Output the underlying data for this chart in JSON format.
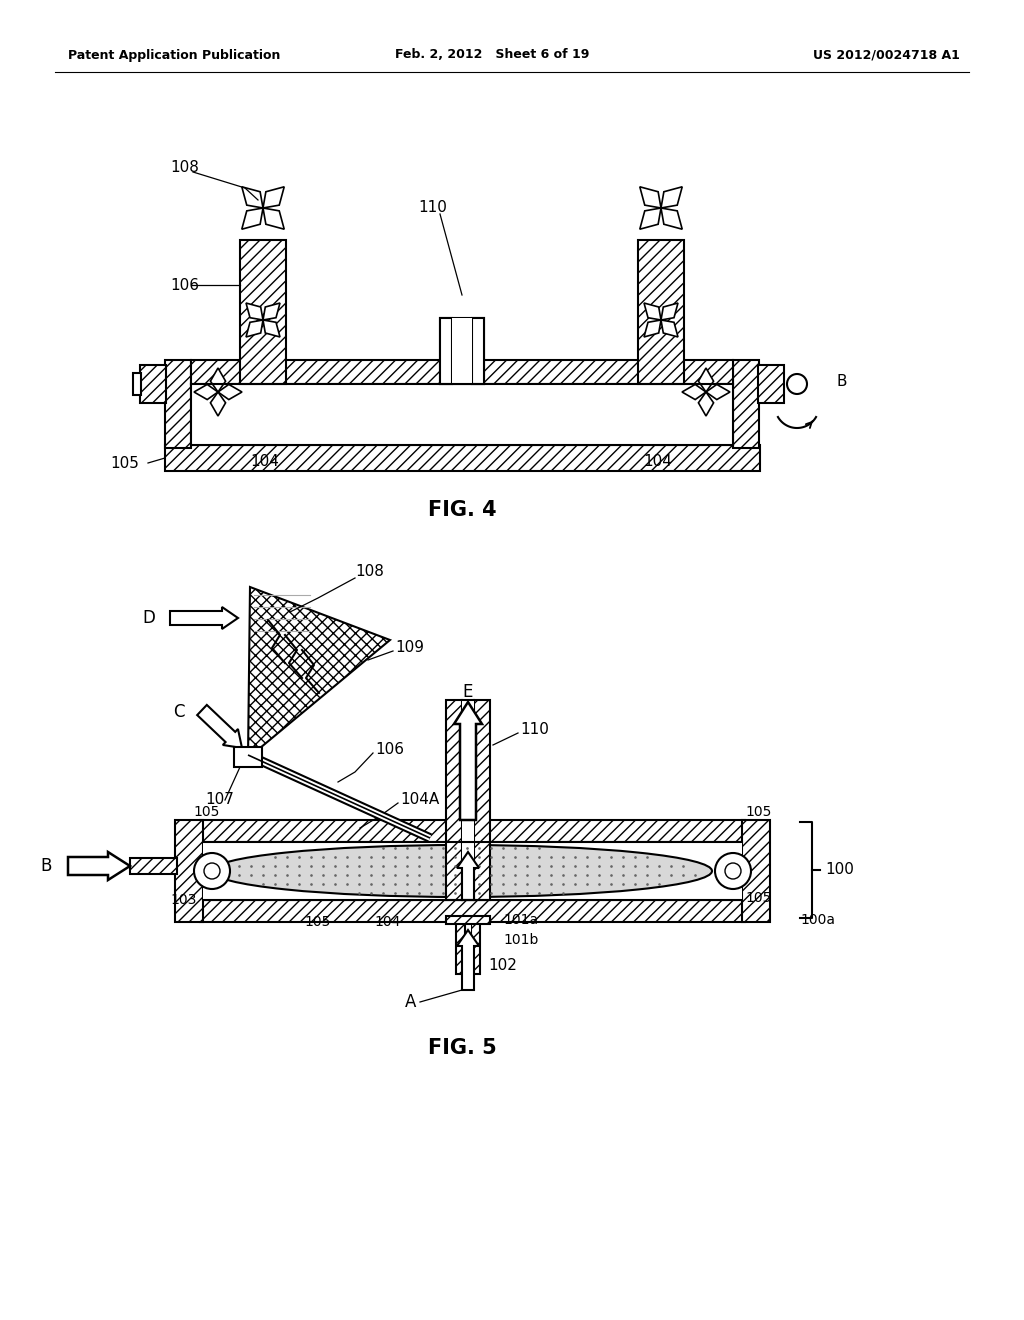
{
  "bg_color": "#ffffff",
  "header_left": "Patent Application Publication",
  "header_mid": "Feb. 2, 2012   Sheet 6 of 19",
  "header_right": "US 2012/0024718 A1",
  "fig4_label": "FIG. 4",
  "fig5_label": "FIG. 5",
  "black": "#000000"
}
